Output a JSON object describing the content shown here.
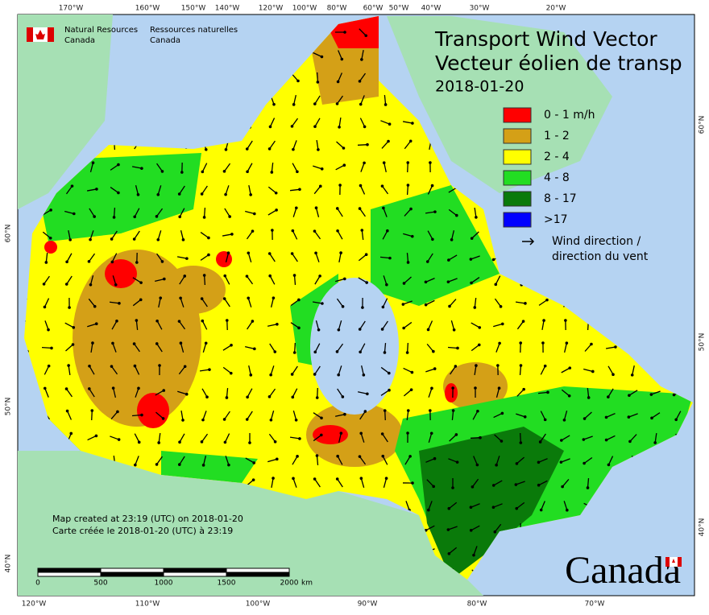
{
  "header": {
    "agency_en": "Natural Resources",
    "country_en": "Canada",
    "agency_fr": "Ressources naturelles",
    "country_fr": "Canada"
  },
  "title": {
    "line1": "Transport Wind Vector",
    "line2": "Vecteur éolien de transp",
    "date": "2018-01-20"
  },
  "legend": {
    "items": [
      {
        "label": "0 - 1 m/h",
        "color": "#ff0000"
      },
      {
        "label": "1 - 2",
        "color": "#d4a017"
      },
      {
        "label": "2 - 4",
        "color": "#ffff00"
      },
      {
        "label": "4 - 8",
        "color": "#22dd22"
      },
      {
        "label": "8 - 17",
        "color": "#0a7a0a"
      },
      {
        "label": ">17",
        "color": "#0000ff"
      }
    ],
    "arrow_label_1": "Wind direction /",
    "arrow_label_2": "direction du vent"
  },
  "axes": {
    "top": [
      "170°W",
      "160°W",
      "150°W",
      "140°W",
      "120°W",
      "100°W",
      "80°W",
      "60°W",
      "50°W",
      "40°W",
      "30°W",
      "20°W"
    ],
    "bottom": [
      "120°W",
      "110°W",
      "100°W",
      "90°W",
      "80°W",
      "70°W"
    ],
    "left": [
      "60°N",
      "50°N",
      "40°N"
    ],
    "right": [
      "60°N",
      "50°N",
      "40°N"
    ]
  },
  "notes": {
    "created_en": "Map created at 23:19 (UTC) on 2018-01-20",
    "created_fr": "Carte créée le 2018-01-20 (UTC) à 23:19"
  },
  "scale": {
    "labels": [
      "0",
      "500",
      "1000",
      "1500",
      "2000"
    ],
    "unit": "km"
  },
  "wordmark": "Canada"
}
